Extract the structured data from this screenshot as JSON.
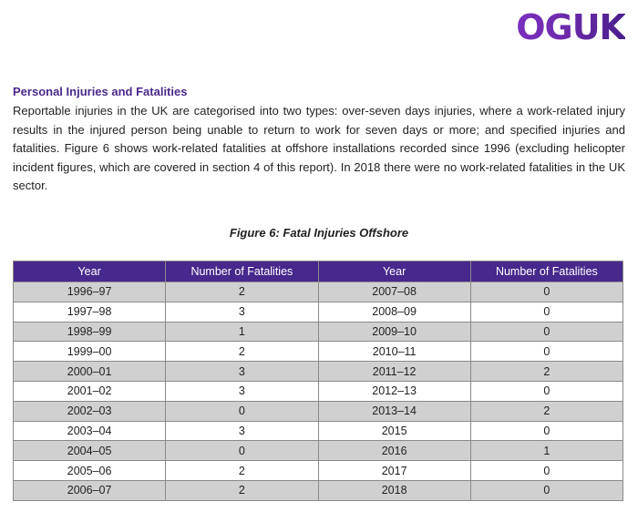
{
  "logo": "OGUK",
  "heading": "Personal Injuries and Fatalities",
  "paragraph": "Reportable injuries in the UK are categorised into two types: over-seven days injuries, where a work-related injury results in the injured person being unable to return to work for seven days or more; and specified injuries and fatalities. Figure 6 shows work-related fatalities at offshore installations recorded since 1996 (excluding helicopter incident figures, which are covered in section 4 of this report). In 2018 there were no work-related fatalities in the UK sector.",
  "caption": "Figure 6: Fatal Injuries Offshore",
  "table": {
    "headers": [
      "Year",
      "Number of Fatalities",
      "Year",
      "Number of Fatalities"
    ],
    "rows": [
      [
        "1996–97",
        "2",
        "2007–08",
        "0"
      ],
      [
        "1997–98",
        "3",
        "2008–09",
        "0"
      ],
      [
        "1998–99",
        "1",
        "2009–10",
        "0"
      ],
      [
        "1999–00",
        "2",
        "2010–11",
        "0"
      ],
      [
        "2000–01",
        "3",
        "2011–12",
        "2"
      ],
      [
        "2001–02",
        "3",
        "2012–13",
        "0"
      ],
      [
        "2002–03",
        "0",
        "2013–14",
        "2"
      ],
      [
        "2003–04",
        "3",
        "2015",
        "0"
      ],
      [
        "2004–05",
        "0",
        "2016",
        "1"
      ],
      [
        "2005–06",
        "2",
        "2017",
        "0"
      ],
      [
        "2006–07",
        "2",
        "2018",
        "0"
      ]
    ]
  }
}
